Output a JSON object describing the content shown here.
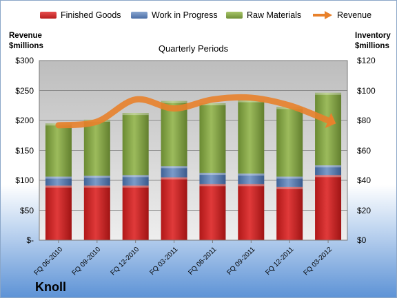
{
  "chart_data": {
    "type": "bar",
    "title": "Quarterly Periods",
    "company": "Knoll",
    "left_axis_title": [
      "Revenue",
      "$millions"
    ],
    "right_axis_title": [
      "Inventory",
      "$millions"
    ],
    "left_ticks": [
      "$-",
      "$50",
      "$100",
      "$150",
      "$200",
      "$250",
      "$300"
    ],
    "right_ticks": [
      "$0",
      "$20",
      "$40",
      "$60",
      "$80",
      "$100",
      "$120"
    ],
    "left_ylim": [
      0,
      300
    ],
    "right_ylim": [
      0,
      120
    ],
    "categories": [
      "FQ 06-2010",
      "FQ 09-2010",
      "FQ 12-2010",
      "FQ 03-2011",
      "FQ 06-2011",
      "FQ 09-2011",
      "FQ 12-2011",
      "FQ 03-2012"
    ],
    "series": [
      {
        "name": "Finished Goods",
        "type": "stacked-bar",
        "axis": "right",
        "color": "#d42a2a",
        "values": [
          36.5,
          36.5,
          36.5,
          42,
          37.5,
          37.5,
          35.5,
          43.5
        ]
      },
      {
        "name": "Work in Progress",
        "type": "stacked-bar",
        "axis": "right",
        "color": "#5f83b8",
        "values": [
          6,
          6.5,
          7,
          7.5,
          7.5,
          7,
          7,
          6.5
        ]
      },
      {
        "name": "Raw Materials",
        "type": "stacked-bar",
        "axis": "right",
        "color": "#86a84a",
        "values": [
          35.5,
          37.5,
          41.5,
          43.5,
          46.5,
          49,
          46.5,
          48.5
        ]
      },
      {
        "name": "Revenue",
        "type": "line",
        "axis": "left",
        "color": "#e8812b",
        "values": [
          192,
          198,
          235,
          220,
          235,
          238,
          225,
          200
        ]
      }
    ],
    "legend_position": "top",
    "grid": true
  }
}
